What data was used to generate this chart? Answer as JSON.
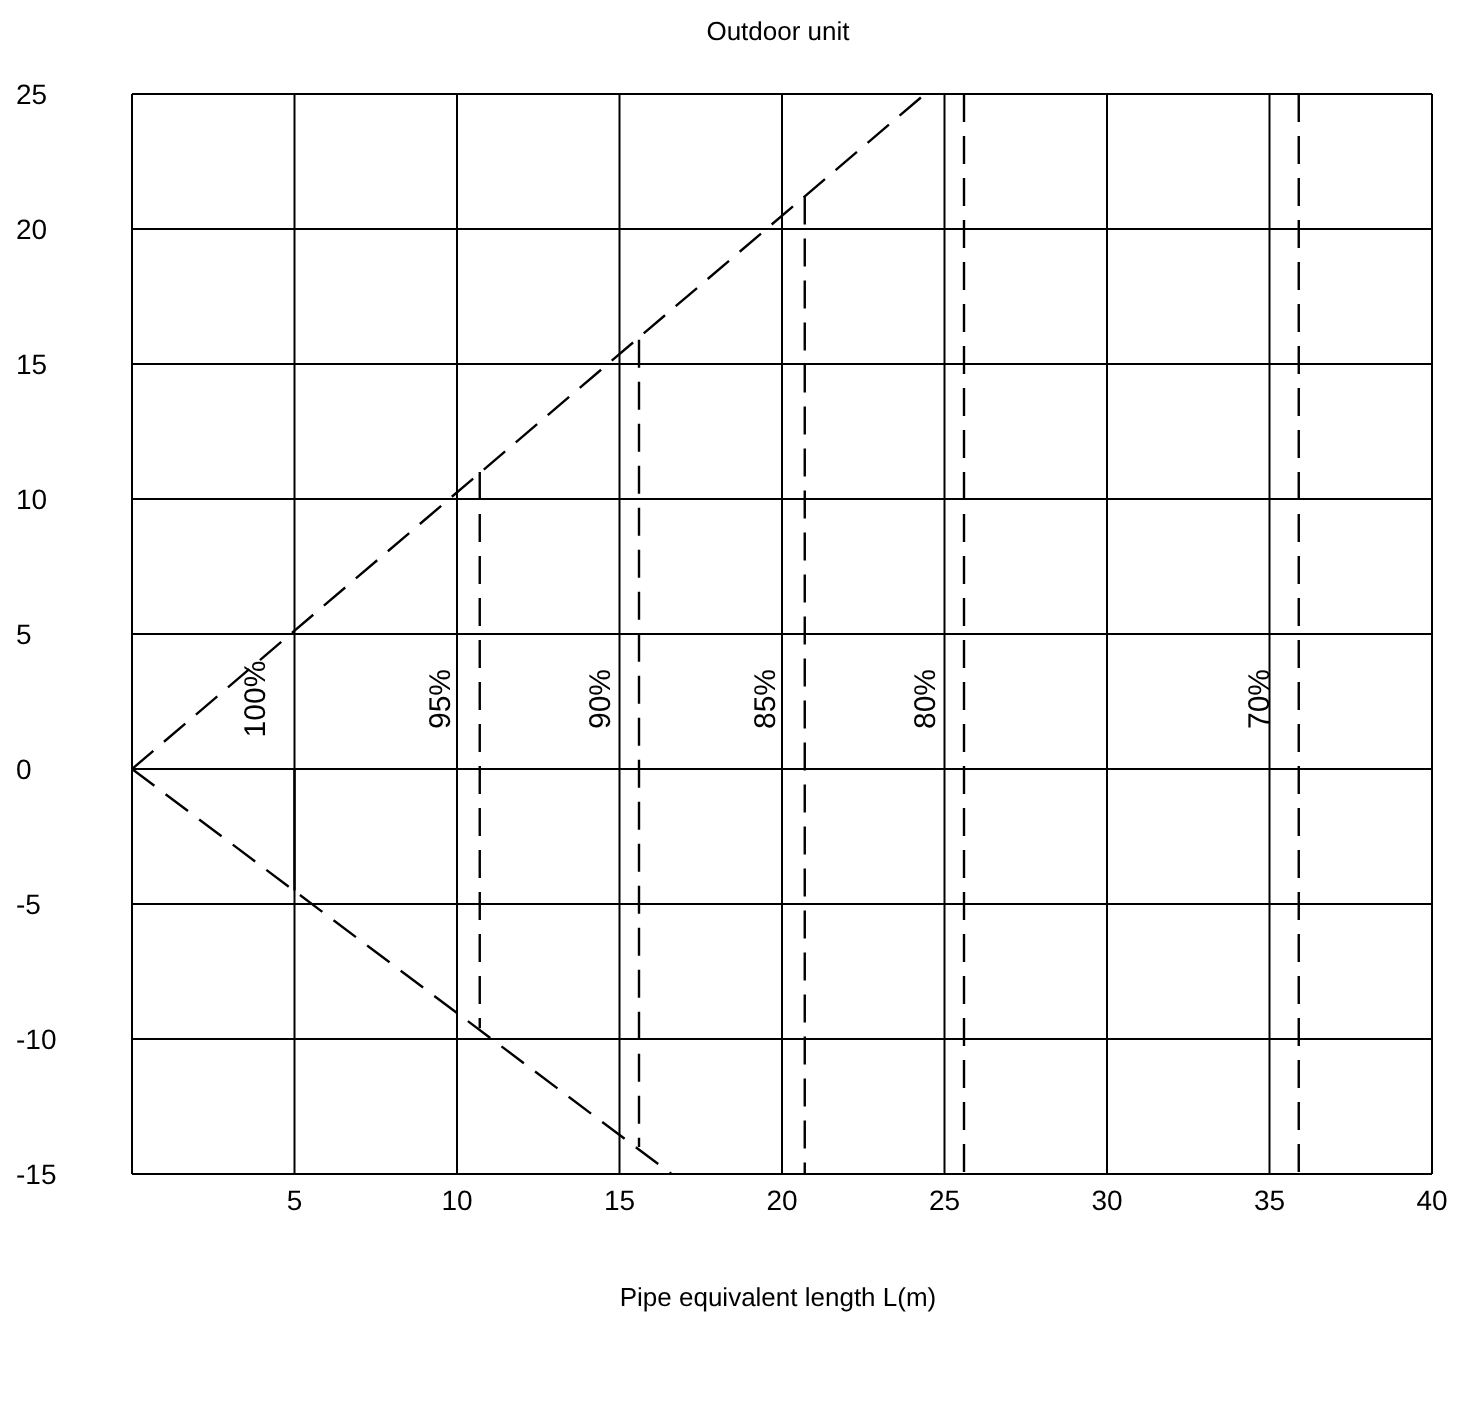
{
  "chart_data": {
    "type": "line",
    "title": "Outdoor unit",
    "xlabel": "Pipe equivalent length L(m)",
    "xlim": [
      0,
      40
    ],
    "xticks": [
      5,
      10,
      15,
      20,
      25,
      30,
      35,
      40
    ],
    "ylim": [
      -15,
      25
    ],
    "yticks": [
      -15,
      -10,
      -5,
      0,
      5,
      10,
      15,
      20,
      25
    ],
    "grid": true,
    "series": [
      {
        "color": "#000000",
        "line_style": "dashed",
        "x": [
          0,
          24.4
        ],
        "values": [
          0,
          25
        ]
      },
      {
        "color": "#000000",
        "line_style": "dashed",
        "x": [
          0,
          16.6
        ],
        "values": [
          0,
          -15
        ]
      },
      {
        "name": "100%",
        "color": "#000000",
        "line_style": "solid",
        "x": [
          5,
          5
        ],
        "values": [
          0,
          -4.5
        ]
      },
      {
        "name": "95%",
        "color": "#000000",
        "line_style": "dashed",
        "x": [
          10.7,
          10.7
        ],
        "values": [
          11,
          -9.6
        ]
      },
      {
        "name": "90%",
        "color": "#000000",
        "line_style": "dashed",
        "x": [
          15.6,
          15.6
        ],
        "values": [
          15.9,
          -14
        ]
      },
      {
        "name": "85%",
        "color": "#000000",
        "line_style": "dashed",
        "x": [
          20.7,
          20.7
        ],
        "values": [
          21.2,
          -15
        ]
      },
      {
        "name": "80%",
        "color": "#000000",
        "line_style": "dashed",
        "x": [
          25.6,
          25.6
        ],
        "values": [
          25,
          -15
        ]
      },
      {
        "name": "70%",
        "color": "#000000",
        "line_style": "dashed",
        "x": [
          35.9,
          35.9
        ],
        "values": [
          25,
          -15
        ]
      }
    ]
  }
}
